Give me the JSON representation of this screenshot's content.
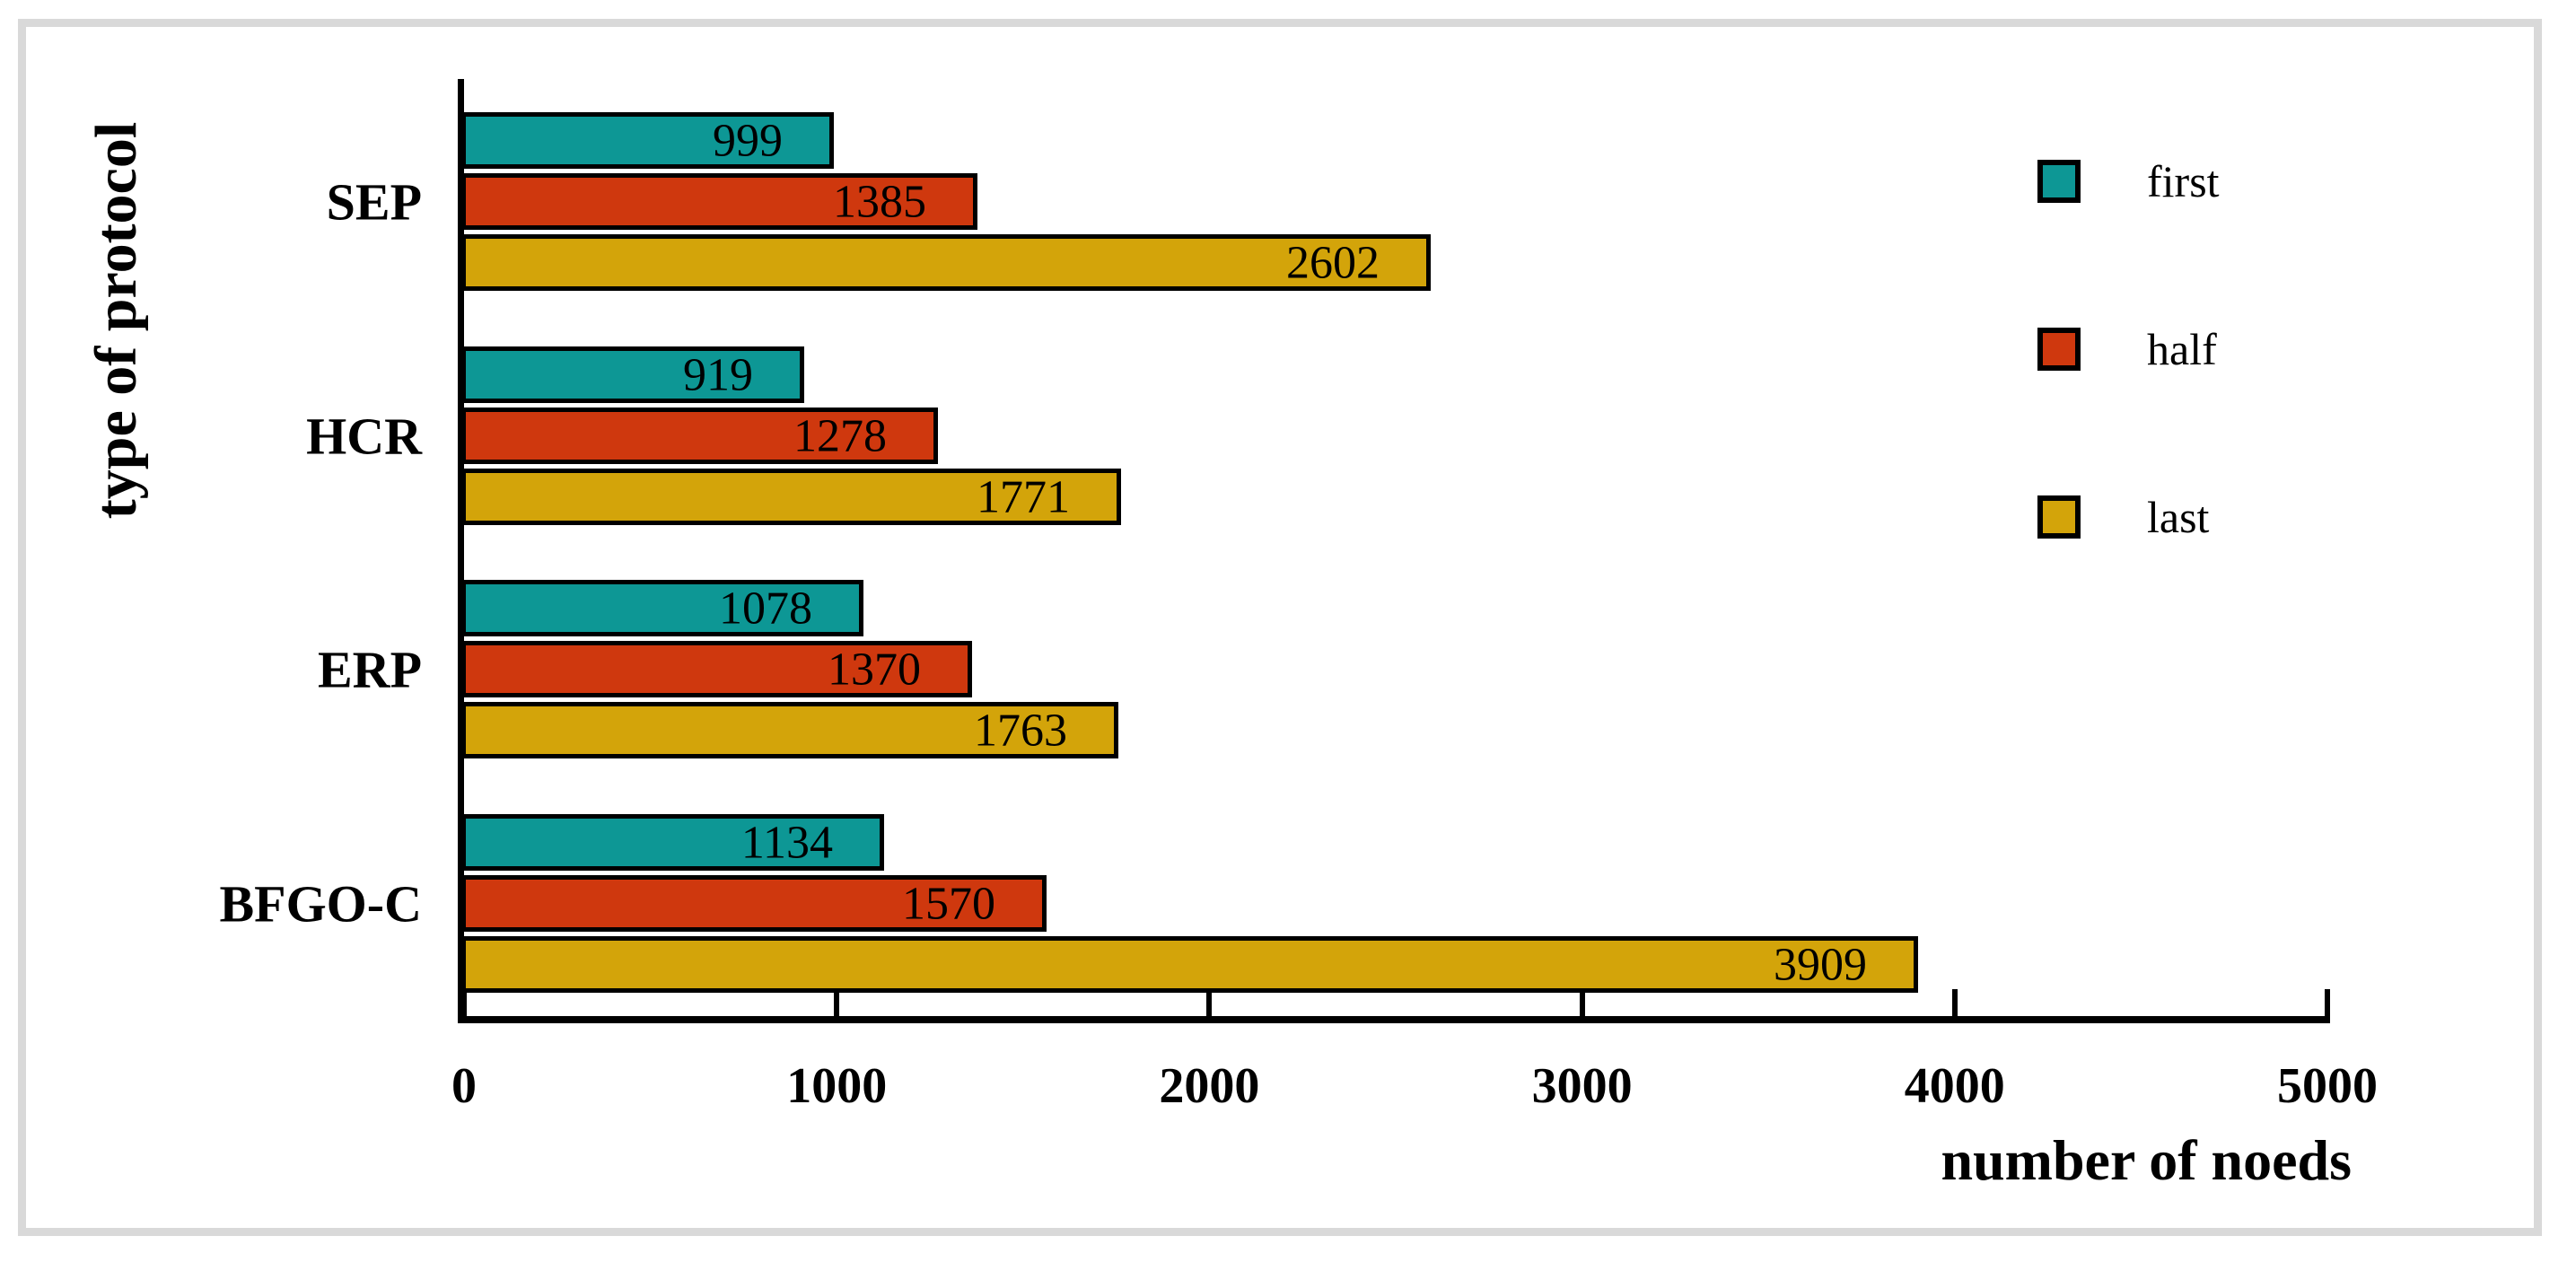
{
  "window": {
    "background": "#ffffff",
    "frame_border_color": "#d9d9d9"
  },
  "chart_data": {
    "type": "bar",
    "orientation": "horizontal",
    "title": "",
    "xlabel": "number of noeds",
    "ylabel": "type of protocol",
    "categories": [
      "SEP",
      "HCR",
      "ERP",
      "BFGO-C"
    ],
    "series": [
      {
        "name": "first",
        "color": "#0D9795",
        "values": [
          999,
          919,
          1078,
          1134
        ]
      },
      {
        "name": "half",
        "color": "#CF380E",
        "values": [
          1385,
          1278,
          1370,
          1570
        ]
      },
      {
        "name": "last",
        "color": "#D3A40A",
        "values": [
          2602,
          1771,
          1763,
          3909
        ]
      }
    ],
    "xlim": [
      0,
      5000
    ],
    "xticks": [
      0,
      1000,
      2000,
      3000,
      4000,
      5000
    ],
    "grid": false,
    "bar_edge_color": "#000000",
    "value_labels": true,
    "legend_position": "upper right"
  }
}
